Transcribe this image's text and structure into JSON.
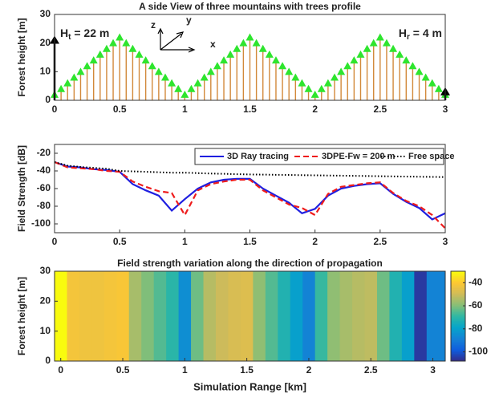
{
  "chart_data": [
    {
      "type": "trees",
      "title": "A side View of three mountains with trees profile",
      "ylabel": "Forest height [m]",
      "x": [
        0,
        0.05,
        0.1,
        0.15,
        0.2,
        0.25,
        0.3,
        0.35,
        0.4,
        0.45,
        0.5,
        0.55,
        0.6,
        0.65,
        0.7,
        0.75,
        0.8,
        0.85,
        0.9,
        0.95,
        1,
        1.05,
        1.1,
        1.15,
        1.2,
        1.25,
        1.3,
        1.35,
        1.4,
        1.45,
        1.5,
        1.55,
        1.6,
        1.65,
        1.7,
        1.75,
        1.8,
        1.85,
        1.9,
        1.95,
        2,
        2.05,
        2.1,
        2.15,
        2.2,
        2.25,
        2.3,
        2.35,
        2.4,
        2.45,
        2.5,
        2.55,
        2.6,
        2.65,
        2.7,
        2.75,
        2.8,
        2.85,
        2.9,
        2.95,
        3
      ],
      "values": [
        2,
        4,
        6,
        8,
        10,
        12,
        14,
        16,
        18,
        20,
        22,
        20,
        18,
        16,
        14,
        12,
        10,
        8,
        6,
        4,
        2,
        4,
        6,
        8,
        10,
        12,
        14,
        16,
        18,
        20,
        22,
        20,
        18,
        16,
        14,
        12,
        10,
        8,
        6,
        4,
        2,
        4,
        6,
        8,
        10,
        12,
        14,
        16,
        18,
        20,
        22,
        20,
        18,
        16,
        14,
        12,
        10,
        8,
        6,
        4,
        2
      ],
      "color": "#d2893a",
      "marker_color": "#2ee52e",
      "xlim": [
        0,
        3
      ],
      "ylim": [
        0,
        30
      ],
      "xticks": [
        0,
        0.5,
        1,
        1.5,
        2,
        2.5,
        3
      ],
      "yticks": [
        0,
        10,
        20,
        30
      ],
      "transmitter": {
        "x": 0,
        "height": 22,
        "label": {
          "base": "H",
          "sub": "t",
          "rest": " = 22 m"
        }
      },
      "receiver": {
        "x": 3,
        "height": 4,
        "label": {
          "base": "H",
          "sub": "r",
          "rest": " = 4 m"
        }
      },
      "axes_icon": [
        "z",
        "y",
        "x"
      ]
    },
    {
      "type": "line",
      "ylabel": "Field Strength [dB]",
      "x": [
        0,
        0.1,
        0.2,
        0.3,
        0.4,
        0.5,
        0.6,
        0.7,
        0.8,
        0.9,
        1,
        1.1,
        1.2,
        1.3,
        1.4,
        1.5,
        1.6,
        1.7,
        1.8,
        1.9,
        2,
        2.1,
        2.2,
        2.3,
        2.4,
        2.5,
        2.6,
        2.7,
        2.8,
        2.9,
        3
      ],
      "series": [
        {
          "name": "3D Ray tracing",
          "color": "#1f1fe0",
          "dash": "solid",
          "values": [
            -30,
            -35,
            -36,
            -38,
            -39,
            -41,
            -55,
            -62,
            -68,
            -85,
            -72,
            -60,
            -53,
            -50,
            -49,
            -49,
            -60,
            -68,
            -76,
            -88,
            -83,
            -68,
            -60,
            -57,
            -55,
            -54,
            -66,
            -75,
            -82,
            -95,
            -88
          ]
        },
        {
          "name": "3DPE-Fw = 200 m",
          "color": "#ee1c1c",
          "dash": "dashed",
          "values": [
            -30,
            -36,
            -37,
            -38,
            -40,
            -41,
            -52,
            -58,
            -63,
            -65,
            -90,
            -62,
            -55,
            -52,
            -50,
            -50,
            -62,
            -70,
            -78,
            -82,
            -90,
            -66,
            -58,
            -56,
            -54,
            -53,
            -65,
            -74,
            -80,
            -90,
            -105
          ]
        },
        {
          "name": "Free space",
          "color": "#000000",
          "dash": "dotted",
          "values": [
            -30,
            -34,
            -35.5,
            -36.5,
            -37.5,
            -40,
            -40.5,
            -41,
            -41.5,
            -42,
            -42,
            -42.5,
            -43,
            -43.3,
            -43.7,
            -44,
            -44.2,
            -44.4,
            -44.6,
            -44.8,
            -45,
            -45.2,
            -45.4,
            -45.6,
            -45.8,
            -46,
            -46.2,
            -46.4,
            -46.6,
            -46.8,
            -47
          ]
        }
      ],
      "xlim": [
        0,
        3
      ],
      "ylim": [
        -110,
        -10
      ],
      "xticks": [
        0,
        0.5,
        1,
        1.5,
        2,
        2.5,
        3
      ],
      "yticks": [
        -20,
        -40,
        -60,
        -80,
        -100
      ],
      "legend": "top-right"
    },
    {
      "type": "heatmap",
      "title": "Field strength variation along the direction of propagation",
      "xlabel": "Simulation Range [km]",
      "ylabel": "Forest height [m]",
      "x": [
        0,
        0.1,
        0.2,
        0.3,
        0.4,
        0.5,
        0.6,
        0.7,
        0.8,
        0.9,
        1,
        1.1,
        1.2,
        1.3,
        1.4,
        1.5,
        1.6,
        1.7,
        1.8,
        1.9,
        2,
        2.1,
        2.2,
        2.3,
        2.4,
        2.5,
        2.6,
        2.7,
        2.8,
        2.9,
        3
      ],
      "values": [
        -30,
        -42,
        -43,
        -43,
        -42,
        -41,
        -55,
        -60,
        -65,
        -70,
        -85,
        -62,
        -53,
        -50,
        -48,
        -47,
        -58,
        -65,
        -72,
        -80,
        -88,
        -68,
        -58,
        -55,
        -53,
        -52,
        -62,
        -72,
        -80,
        -105,
        -88
      ],
      "xlim": [
        -0.05,
        3.1
      ],
      "ylim": [
        0,
        30
      ],
      "xticks": [
        0,
        0.5,
        1,
        1.5,
        2,
        2.5,
        3
      ],
      "yticks": [
        0,
        10,
        20,
        30
      ],
      "clim": [
        -108,
        -30
      ],
      "cticks": [
        -40,
        -60,
        -80,
        -100
      ],
      "colormap": [
        "#352a87",
        "#0f5cdd",
        "#1481d6",
        "#06a4ca",
        "#2eb7a4",
        "#87bf77",
        "#d1bb59",
        "#fec832",
        "#f9fb0e"
      ]
    }
  ]
}
